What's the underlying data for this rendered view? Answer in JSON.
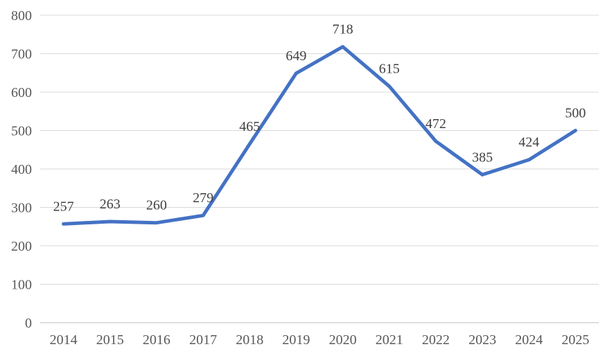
{
  "chart_data": {
    "type": "line",
    "title": "",
    "xlabel": "",
    "ylabel": "",
    "categories": [
      "2014",
      "2015",
      "2016",
      "2017",
      "2018",
      "2019",
      "2020",
      "2021",
      "2022",
      "2023",
      "2024",
      "2025"
    ],
    "series": [
      {
        "name": "values-by-year",
        "values": [
          257,
          263,
          260,
          279,
          465,
          649,
          718,
          615,
          472,
          385,
          424,
          500
        ]
      }
    ],
    "show_data_labels": true,
    "data_label_position": "above",
    "ylim": [
      0,
      800
    ],
    "ytick_step": 100,
    "ytick_labels": [
      "0",
      "100",
      "200",
      "300",
      "400",
      "500",
      "600",
      "700",
      "800"
    ],
    "grid": true,
    "legend_position": "none"
  },
  "colors": {
    "line": "#4472C4",
    "gridline": "#D9D9D9",
    "axis_line": "#BFBFBF",
    "axis_text": "#595959",
    "data_label_text": "#404040",
    "background": "#FFFFFF"
  }
}
